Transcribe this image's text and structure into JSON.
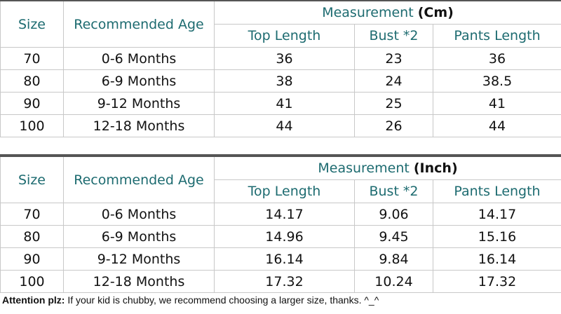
{
  "tables": [
    {
      "header": {
        "size": "Size",
        "age": "Recommended Age",
        "measurement": "Measurement",
        "unit": "(Cm)",
        "columns": [
          "Top Length",
          "Bust *2",
          "Pants Length"
        ]
      },
      "rows": [
        [
          "70",
          "0-6 Months",
          "36",
          "23",
          "36"
        ],
        [
          "80",
          "6-9 Months",
          "38",
          "24",
          "38.5"
        ],
        [
          "90",
          "9-12 Months",
          "41",
          "25",
          "41"
        ],
        [
          "100",
          "12-18 Months",
          "44",
          "26",
          "44"
        ]
      ]
    },
    {
      "header": {
        "size": "Size",
        "age": "Recommended Age",
        "measurement": "Measurement",
        "unit": "(Inch)",
        "columns": [
          "Top Length",
          "Bust *2",
          "Pants Length"
        ]
      },
      "rows": [
        [
          "70",
          "0-6 Months",
          "14.17",
          "9.06",
          "14.17"
        ],
        [
          "80",
          "6-9 Months",
          "14.96",
          "9.45",
          "15.16"
        ],
        [
          "90",
          "9-12 Months",
          "16.14",
          "9.84",
          "16.14"
        ],
        [
          "100",
          "12-18 Months",
          "17.32",
          "10.24",
          "17.32"
        ]
      ]
    }
  ],
  "note": {
    "label": "Attention plz:",
    "text": "If your kid is chubby, we recommend choosing a larger size, thanks. ^_^"
  }
}
